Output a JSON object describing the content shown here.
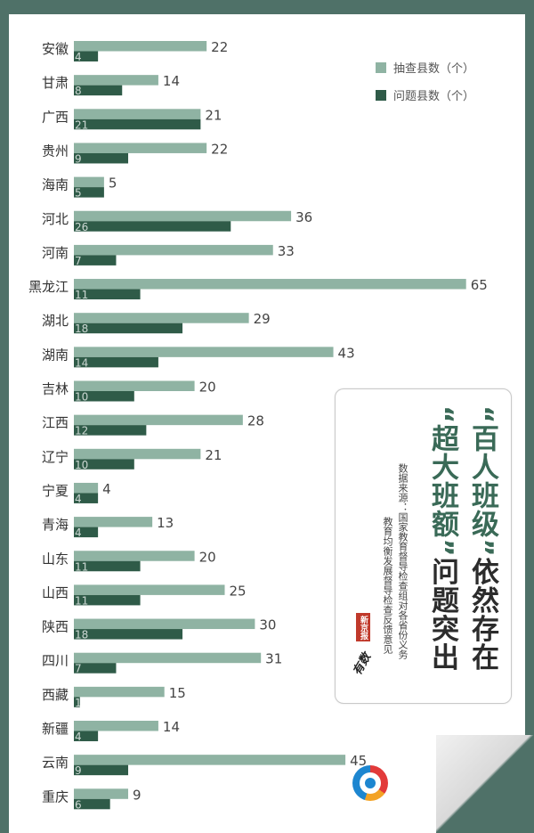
{
  "title": {
    "line1_quote_open": "“",
    "line1_accent": "百人班级",
    "line1_quote_close": "”",
    "line1_rest": "依然存在",
    "line2_quote_open": "“",
    "line2_accent": "超大班额",
    "line2_quote_close": "”",
    "line2_rest": "问题突出"
  },
  "source": {
    "line1": "数据来源：国家教育督导检查组对各省份义务",
    "line2": "教育均衡发展督导检查反馈意见"
  },
  "brand": {
    "badge": "新京报",
    "script": "有数"
  },
  "colors": {
    "background": "#4f7168",
    "sampled": "#8fb3a3",
    "problem": "#2f5b48",
    "title_accent": "#3a6a57"
  },
  "chart_data": {
    "type": "bar",
    "orientation": "horizontal",
    "categories": [
      "安徽",
      "甘肃",
      "广西",
      "贵州",
      "海南",
      "河北",
      "河南",
      "黑龙江",
      "湖北",
      "湖南",
      "吉林",
      "江西",
      "辽宁",
      "宁夏",
      "青海",
      "山东",
      "山西",
      "陕西",
      "四川",
      "西藏",
      "新疆",
      "云南",
      "重庆"
    ],
    "series": [
      {
        "name": "抽查县数（个）",
        "values": [
          22,
          14,
          21,
          22,
          5,
          36,
          33,
          65,
          29,
          43,
          20,
          28,
          21,
          4,
          13,
          20,
          25,
          30,
          31,
          15,
          14,
          45,
          9
        ]
      },
      {
        "name": "问题县数（个）",
        "values": [
          4,
          8,
          21,
          9,
          5,
          26,
          7,
          11,
          18,
          14,
          10,
          12,
          10,
          4,
          4,
          11,
          11,
          18,
          7,
          1,
          4,
          9,
          6
        ]
      }
    ],
    "xlim": [
      0,
      65
    ],
    "legend": "top-right",
    "grid": false
  }
}
